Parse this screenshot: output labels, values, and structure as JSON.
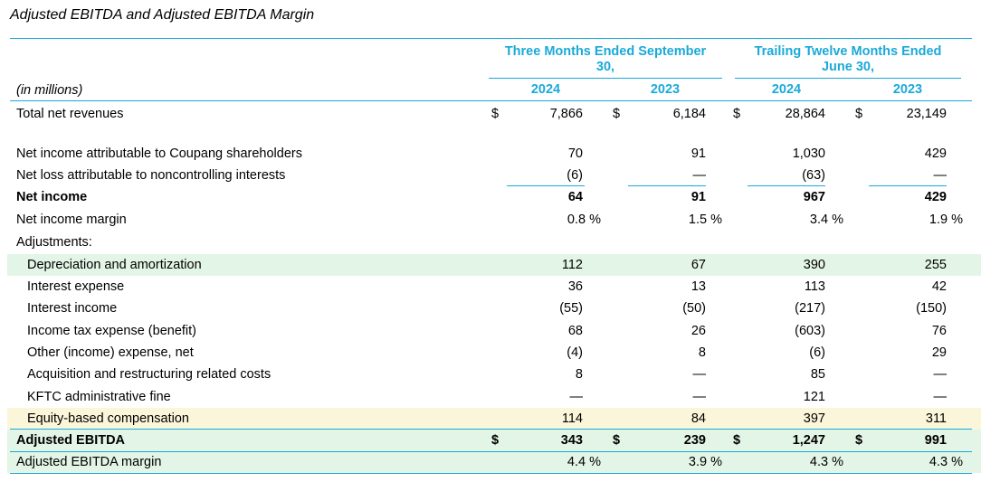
{
  "title": "Adjusted EBITDA and Adjusted EBITDA Margin",
  "header": {
    "group1": [
      "Three Months Ended September",
      "30,"
    ],
    "group2": [
      "Trailing Twelve Months Ended",
      "June 30,"
    ],
    "years": [
      "2024",
      "2023",
      "2024",
      "2023"
    ],
    "units_label": "(in millions)"
  },
  "rows": [
    {
      "label": "Total net revenues",
      "values": [
        "7,866",
        "6,184",
        "28,864",
        "23,149"
      ],
      "dollar": true,
      "bold": false,
      "indent": false,
      "hl": ""
    },
    {
      "label": "Net income attributable to Coupang shareholders",
      "values": [
        "70",
        "91",
        "1,030",
        "429"
      ],
      "dollar": false,
      "bold": false,
      "indent": false,
      "hl": ""
    },
    {
      "label": "Net loss attributable to noncontrolling interests",
      "values": [
        "(6)",
        "—",
        "(63)",
        "—"
      ],
      "dollar": false,
      "bold": false,
      "indent": false,
      "hl": ""
    },
    {
      "label": "Net income",
      "values": [
        "64",
        "91",
        "967",
        "429"
      ],
      "dollar": false,
      "bold": true,
      "indent": false,
      "hl": ""
    },
    {
      "label": "Net income margin",
      "values": [
        "0.8 %",
        "1.5 %",
        "3.4 %",
        "1.9 %"
      ],
      "dollar": false,
      "bold": false,
      "indent": false,
      "hl": "",
      "pct": true
    },
    {
      "label": "Adjustments:",
      "values": [
        "",
        "",
        "",
        ""
      ],
      "dollar": false,
      "bold": false,
      "indent": false,
      "hl": ""
    },
    {
      "label": "Depreciation and amortization",
      "values": [
        "112",
        "67",
        "390",
        "255"
      ],
      "dollar": false,
      "bold": false,
      "indent": true,
      "hl": "green"
    },
    {
      "label": "Interest expense",
      "values": [
        "36",
        "13",
        "113",
        "42"
      ],
      "dollar": false,
      "bold": false,
      "indent": true,
      "hl": ""
    },
    {
      "label": "Interest income",
      "values": [
        "(55)",
        "(50)",
        "(217)",
        "(150)"
      ],
      "dollar": false,
      "bold": false,
      "indent": true,
      "hl": ""
    },
    {
      "label": "Income tax expense (benefit)",
      "values": [
        "68",
        "26",
        "(603)",
        "76"
      ],
      "dollar": false,
      "bold": false,
      "indent": true,
      "hl": ""
    },
    {
      "label": "Other (income) expense, net",
      "values": [
        "(4)",
        "8",
        "(6)",
        "29"
      ],
      "dollar": false,
      "bold": false,
      "indent": true,
      "hl": ""
    },
    {
      "label": "Acquisition and restructuring related costs",
      "values": [
        "8",
        "—",
        "85",
        "—"
      ],
      "dollar": false,
      "bold": false,
      "indent": true,
      "hl": ""
    },
    {
      "label": "KFTC administrative fine",
      "values": [
        "—",
        "—",
        "121",
        "—"
      ],
      "dollar": false,
      "bold": false,
      "indent": true,
      "hl": ""
    },
    {
      "label": "Equity-based compensation",
      "values": [
        "114",
        "84",
        "397",
        "311"
      ],
      "dollar": false,
      "bold": false,
      "indent": true,
      "hl": "yellow"
    },
    {
      "label": "Adjusted EBITDA",
      "values": [
        "343",
        "239",
        "1,247",
        "991"
      ],
      "dollar": true,
      "bold": true,
      "indent": false,
      "hl": "green"
    },
    {
      "label": "Adjusted EBITDA margin",
      "values": [
        "4.4 %",
        "3.9 %",
        "4.3 %",
        "4.3 %"
      ],
      "dollar": false,
      "bold": false,
      "indent": false,
      "hl": "green",
      "pct": true
    }
  ],
  "currency_symbol": "$",
  "colors": {
    "accent": "#1aa9d8",
    "green_highlight": "#e3f5e6",
    "yellow_highlight": "#fbf6d9"
  }
}
